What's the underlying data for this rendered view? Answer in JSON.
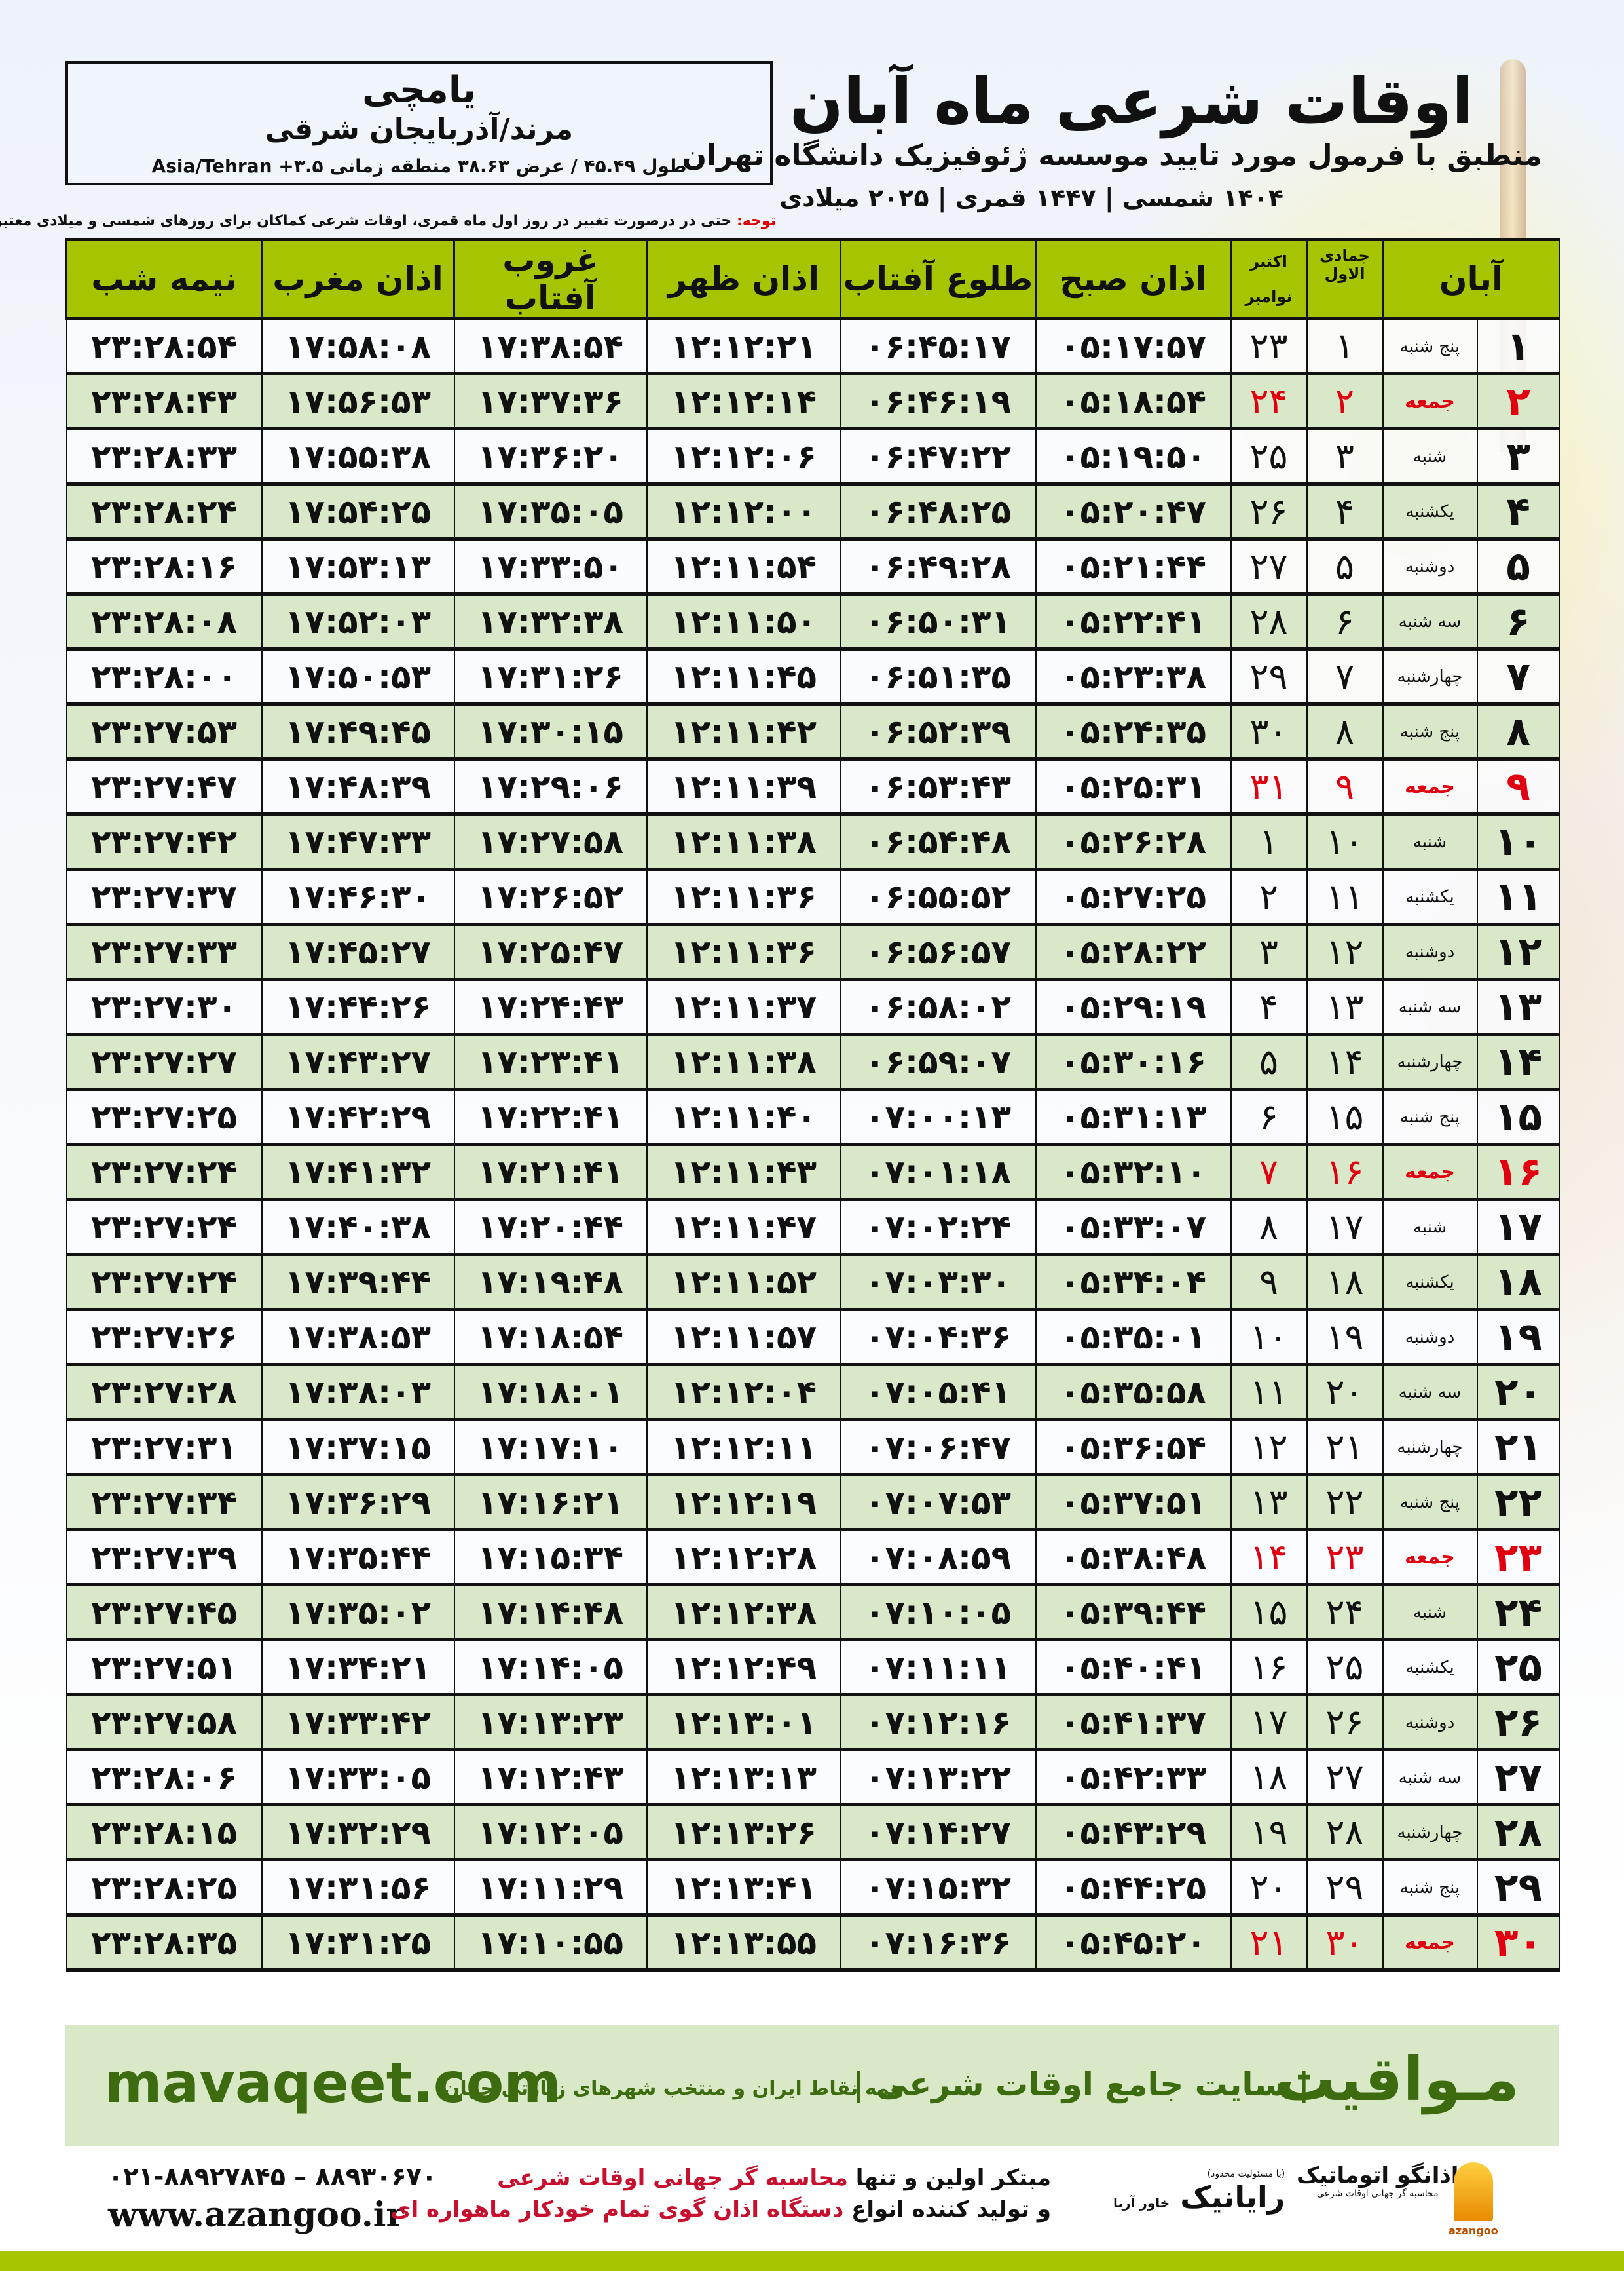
{
  "header": {
    "title": "اوقات شرعی ماه آبان",
    "subtitle": "منطبق با فرمول مورد تایید موسسه ژئوفیزیک دانشگاه تهران",
    "dates": "۱۴۰۴ شمسی | ۱۴۴۷ قمری | ۲۰۲۵ میلادی"
  },
  "location": {
    "city": "یامچی",
    "region": "مرند/آذربایجان شرقی",
    "coords": "طول ۴۵.۴۹ / عرض ۳۸.۶۳ منطقه زمانی Asia/Tehran +۳.۵"
  },
  "note": {
    "label": "توجه:",
    "text": " حتی در درصورت تغییر در روز اول ماه قمری، اوقات شرعی کماکان برای روزهای شمسی و میلادی معتبر است."
  },
  "table": {
    "headers": {
      "shamsi": "آبان",
      "hijri": "جمادی الاول",
      "gregorian_top": "اکتبر",
      "gregorian_bottom": "نوامبر",
      "fajr": "اذان صبح",
      "sunrise": "طلوع آفتاب",
      "dhuhr": "اذان ظهر",
      "sunset": "غروب آفتاب",
      "maghrib": "اذان مغرب",
      "midnight": "نیمه شب"
    },
    "holiday_color": "#e00010",
    "header_color": "#a6c400",
    "stripe_color": "#d9e8c8",
    "rows": [
      {
        "day": "۱",
        "weekday": "پنج شنبه",
        "hijri": "۱",
        "gregorian": "۲۳",
        "fajr": "۰۵:۱۷:۵۷",
        "sunrise": "۰۶:۴۵:۱۷",
        "dhuhr": "۱۲:۱۲:۲۱",
        "sunset": "۱۷:۳۸:۵۴",
        "maghrib": "۱۷:۵۸:۰۸",
        "midnight": "۲۳:۲۸:۵۴",
        "holiday": false
      },
      {
        "day": "۲",
        "weekday": "جمعه",
        "hijri": "۲",
        "gregorian": "۲۴",
        "fajr": "۰۵:۱۸:۵۴",
        "sunrise": "۰۶:۴۶:۱۹",
        "dhuhr": "۱۲:۱۲:۱۴",
        "sunset": "۱۷:۳۷:۳۶",
        "maghrib": "۱۷:۵۶:۵۳",
        "midnight": "۲۳:۲۸:۴۳",
        "holiday": true
      },
      {
        "day": "۳",
        "weekday": "شنبه",
        "hijri": "۳",
        "gregorian": "۲۵",
        "fajr": "۰۵:۱۹:۵۰",
        "sunrise": "۰۶:۴۷:۲۲",
        "dhuhr": "۱۲:۱۲:۰۶",
        "sunset": "۱۷:۳۶:۲۰",
        "maghrib": "۱۷:۵۵:۳۸",
        "midnight": "۲۳:۲۸:۳۳",
        "holiday": false
      },
      {
        "day": "۴",
        "weekday": "یکشنبه",
        "hijri": "۴",
        "gregorian": "۲۶",
        "fajr": "۰۵:۲۰:۴۷",
        "sunrise": "۰۶:۴۸:۲۵",
        "dhuhr": "۱۲:۱۲:۰۰",
        "sunset": "۱۷:۳۵:۰۵",
        "maghrib": "۱۷:۵۴:۲۵",
        "midnight": "۲۳:۲۸:۲۴",
        "holiday": false
      },
      {
        "day": "۵",
        "weekday": "دوشنبه",
        "hijri": "۵",
        "gregorian": "۲۷",
        "fajr": "۰۵:۲۱:۴۴",
        "sunrise": "۰۶:۴۹:۲۸",
        "dhuhr": "۱۲:۱۱:۵۴",
        "sunset": "۱۷:۳۳:۵۰",
        "maghrib": "۱۷:۵۳:۱۳",
        "midnight": "۲۳:۲۸:۱۶",
        "holiday": false
      },
      {
        "day": "۶",
        "weekday": "سه شنبه",
        "hijri": "۶",
        "gregorian": "۲۸",
        "fajr": "۰۵:۲۲:۴۱",
        "sunrise": "۰۶:۵۰:۳۱",
        "dhuhr": "۱۲:۱۱:۵۰",
        "sunset": "۱۷:۳۲:۳۸",
        "maghrib": "۱۷:۵۲:۰۳",
        "midnight": "۲۳:۲۸:۰۸",
        "holiday": false
      },
      {
        "day": "۷",
        "weekday": "چهارشنبه",
        "hijri": "۷",
        "gregorian": "۲۹",
        "fajr": "۰۵:۲۳:۳۸",
        "sunrise": "۰۶:۵۱:۳۵",
        "dhuhr": "۱۲:۱۱:۴۵",
        "sunset": "۱۷:۳۱:۲۶",
        "maghrib": "۱۷:۵۰:۵۳",
        "midnight": "۲۳:۲۸:۰۰",
        "holiday": false
      },
      {
        "day": "۸",
        "weekday": "پنج شنبه",
        "hijri": "۸",
        "gregorian": "۳۰",
        "fajr": "۰۵:۲۴:۳۵",
        "sunrise": "۰۶:۵۲:۳۹",
        "dhuhr": "۱۲:۱۱:۴۲",
        "sunset": "۱۷:۳۰:۱۵",
        "maghrib": "۱۷:۴۹:۴۵",
        "midnight": "۲۳:۲۷:۵۳",
        "holiday": false
      },
      {
        "day": "۹",
        "weekday": "جمعه",
        "hijri": "۹",
        "gregorian": "۳۱",
        "fajr": "۰۵:۲۵:۳۱",
        "sunrise": "۰۶:۵۳:۴۳",
        "dhuhr": "۱۲:۱۱:۳۹",
        "sunset": "۱۷:۲۹:۰۶",
        "maghrib": "۱۷:۴۸:۳۹",
        "midnight": "۲۳:۲۷:۴۷",
        "holiday": true
      },
      {
        "day": "۱۰",
        "weekday": "شنبه",
        "hijri": "۱۰",
        "gregorian": "۱",
        "fajr": "۰۵:۲۶:۲۸",
        "sunrise": "۰۶:۵۴:۴۸",
        "dhuhr": "۱۲:۱۱:۳۸",
        "sunset": "۱۷:۲۷:۵۸",
        "maghrib": "۱۷:۴۷:۳۳",
        "midnight": "۲۳:۲۷:۴۲",
        "holiday": false
      },
      {
        "day": "۱۱",
        "weekday": "یکشنبه",
        "hijri": "۱۱",
        "gregorian": "۲",
        "fajr": "۰۵:۲۷:۲۵",
        "sunrise": "۰۶:۵۵:۵۲",
        "dhuhr": "۱۲:۱۱:۳۶",
        "sunset": "۱۷:۲۶:۵۲",
        "maghrib": "۱۷:۴۶:۳۰",
        "midnight": "۲۳:۲۷:۳۷",
        "holiday": false
      },
      {
        "day": "۱۲",
        "weekday": "دوشنبه",
        "hijri": "۱۲",
        "gregorian": "۳",
        "fajr": "۰۵:۲۸:۲۲",
        "sunrise": "۰۶:۵۶:۵۷",
        "dhuhr": "۱۲:۱۱:۳۶",
        "sunset": "۱۷:۲۵:۴۷",
        "maghrib": "۱۷:۴۵:۲۷",
        "midnight": "۲۳:۲۷:۳۳",
        "holiday": false
      },
      {
        "day": "۱۳",
        "weekday": "سه شنبه",
        "hijri": "۱۳",
        "gregorian": "۴",
        "fajr": "۰۵:۲۹:۱۹",
        "sunrise": "۰۶:۵۸:۰۲",
        "dhuhr": "۱۲:۱۱:۳۷",
        "sunset": "۱۷:۲۴:۴۳",
        "maghrib": "۱۷:۴۴:۲۶",
        "midnight": "۲۳:۲۷:۳۰",
        "holiday": false
      },
      {
        "day": "۱۴",
        "weekday": "چهارشنبه",
        "hijri": "۱۴",
        "gregorian": "۵",
        "fajr": "۰۵:۳۰:۱۶",
        "sunrise": "۰۶:۵۹:۰۷",
        "dhuhr": "۱۲:۱۱:۳۸",
        "sunset": "۱۷:۲۳:۴۱",
        "maghrib": "۱۷:۴۳:۲۷",
        "midnight": "۲۳:۲۷:۲۷",
        "holiday": false
      },
      {
        "day": "۱۵",
        "weekday": "پنج شنبه",
        "hijri": "۱۵",
        "gregorian": "۶",
        "fajr": "۰۵:۳۱:۱۳",
        "sunrise": "۰۷:۰۰:۱۳",
        "dhuhr": "۱۲:۱۱:۴۰",
        "sunset": "۱۷:۲۲:۴۱",
        "maghrib": "۱۷:۴۲:۲۹",
        "midnight": "۲۳:۲۷:۲۵",
        "holiday": false
      },
      {
        "day": "۱۶",
        "weekday": "جمعه",
        "hijri": "۱۶",
        "gregorian": "۷",
        "fajr": "۰۵:۳۲:۱۰",
        "sunrise": "۰۷:۰۱:۱۸",
        "dhuhr": "۱۲:۱۱:۴۳",
        "sunset": "۱۷:۲۱:۴۱",
        "maghrib": "۱۷:۴۱:۳۲",
        "midnight": "۲۳:۲۷:۲۴",
        "holiday": true
      },
      {
        "day": "۱۷",
        "weekday": "شنبه",
        "hijri": "۱۷",
        "gregorian": "۸",
        "fajr": "۰۵:۳۳:۰۷",
        "sunrise": "۰۷:۰۲:۲۴",
        "dhuhr": "۱۲:۱۱:۴۷",
        "sunset": "۱۷:۲۰:۴۴",
        "maghrib": "۱۷:۴۰:۳۸",
        "midnight": "۲۳:۲۷:۲۴",
        "holiday": false
      },
      {
        "day": "۱۸",
        "weekday": "یکشنبه",
        "hijri": "۱۸",
        "gregorian": "۹",
        "fajr": "۰۵:۳۴:۰۴",
        "sunrise": "۰۷:۰۳:۳۰",
        "dhuhr": "۱۲:۱۱:۵۲",
        "sunset": "۱۷:۱۹:۴۸",
        "maghrib": "۱۷:۳۹:۴۴",
        "midnight": "۲۳:۲۷:۲۴",
        "holiday": false
      },
      {
        "day": "۱۹",
        "weekday": "دوشنبه",
        "hijri": "۱۹",
        "gregorian": "۱۰",
        "fajr": "۰۵:۳۵:۰۱",
        "sunrise": "۰۷:۰۴:۳۶",
        "dhuhr": "۱۲:۱۱:۵۷",
        "sunset": "۱۷:۱۸:۵۴",
        "maghrib": "۱۷:۳۸:۵۳",
        "midnight": "۲۳:۲۷:۲۶",
        "holiday": false
      },
      {
        "day": "۲۰",
        "weekday": "سه شنبه",
        "hijri": "۲۰",
        "gregorian": "۱۱",
        "fajr": "۰۵:۳۵:۵۸",
        "sunrise": "۰۷:۰۵:۴۱",
        "dhuhr": "۱۲:۱۲:۰۴",
        "sunset": "۱۷:۱۸:۰۱",
        "maghrib": "۱۷:۳۸:۰۳",
        "midnight": "۲۳:۲۷:۲۸",
        "holiday": false
      },
      {
        "day": "۲۱",
        "weekday": "چهارشنبه",
        "hijri": "۲۱",
        "gregorian": "۱۲",
        "fajr": "۰۵:۳۶:۵۴",
        "sunrise": "۰۷:۰۶:۴۷",
        "dhuhr": "۱۲:۱۲:۱۱",
        "sunset": "۱۷:۱۷:۱۰",
        "maghrib": "۱۷:۳۷:۱۵",
        "midnight": "۲۳:۲۷:۳۱",
        "holiday": false
      },
      {
        "day": "۲۲",
        "weekday": "پنج شنبه",
        "hijri": "۲۲",
        "gregorian": "۱۳",
        "fajr": "۰۵:۳۷:۵۱",
        "sunrise": "۰۷:۰۷:۵۳",
        "dhuhr": "۱۲:۱۲:۱۹",
        "sunset": "۱۷:۱۶:۲۱",
        "maghrib": "۱۷:۳۶:۲۹",
        "midnight": "۲۳:۲۷:۳۴",
        "holiday": false
      },
      {
        "day": "۲۳",
        "weekday": "جمعه",
        "hijri": "۲۳",
        "gregorian": "۱۴",
        "fajr": "۰۵:۳۸:۴۸",
        "sunrise": "۰۷:۰۸:۵۹",
        "dhuhr": "۱۲:۱۲:۲۸",
        "sunset": "۱۷:۱۵:۳۴",
        "maghrib": "۱۷:۳۵:۴۴",
        "midnight": "۲۳:۲۷:۳۹",
        "holiday": true
      },
      {
        "day": "۲۴",
        "weekday": "شنبه",
        "hijri": "۲۴",
        "gregorian": "۱۵",
        "fajr": "۰۵:۳۹:۴۴",
        "sunrise": "۰۷:۱۰:۰۵",
        "dhuhr": "۱۲:۱۲:۳۸",
        "sunset": "۱۷:۱۴:۴۸",
        "maghrib": "۱۷:۳۵:۰۲",
        "midnight": "۲۳:۲۷:۴۵",
        "holiday": false
      },
      {
        "day": "۲۵",
        "weekday": "یکشنبه",
        "hijri": "۲۵",
        "gregorian": "۱۶",
        "fajr": "۰۵:۴۰:۴۱",
        "sunrise": "۰۷:۱۱:۱۱",
        "dhuhr": "۱۲:۱۲:۴۹",
        "sunset": "۱۷:۱۴:۰۵",
        "maghrib": "۱۷:۳۴:۲۱",
        "midnight": "۲۳:۲۷:۵۱",
        "holiday": false
      },
      {
        "day": "۲۶",
        "weekday": "دوشنبه",
        "hijri": "۲۶",
        "gregorian": "۱۷",
        "fajr": "۰۵:۴۱:۳۷",
        "sunrise": "۰۷:۱۲:۱۶",
        "dhuhr": "۱۲:۱۳:۰۱",
        "sunset": "۱۷:۱۳:۲۳",
        "maghrib": "۱۷:۳۳:۴۲",
        "midnight": "۲۳:۲۷:۵۸",
        "holiday": false
      },
      {
        "day": "۲۷",
        "weekday": "سه شنبه",
        "hijri": "۲۷",
        "gregorian": "۱۸",
        "fajr": "۰۵:۴۲:۳۳",
        "sunrise": "۰۷:۱۳:۲۲",
        "dhuhr": "۱۲:۱۳:۱۳",
        "sunset": "۱۷:۱۲:۴۳",
        "maghrib": "۱۷:۳۳:۰۵",
        "midnight": "۲۳:۲۸:۰۶",
        "holiday": false
      },
      {
        "day": "۲۸",
        "weekday": "چهارشنبه",
        "hijri": "۲۸",
        "gregorian": "۱۹",
        "fajr": "۰۵:۴۳:۲۹",
        "sunrise": "۰۷:۱۴:۲۷",
        "dhuhr": "۱۲:۱۳:۲۶",
        "sunset": "۱۷:۱۲:۰۵",
        "maghrib": "۱۷:۳۲:۲۹",
        "midnight": "۲۳:۲۸:۱۵",
        "holiday": false
      },
      {
        "day": "۲۹",
        "weekday": "پنج شنبه",
        "hijri": "۲۹",
        "gregorian": "۲۰",
        "fajr": "۰۵:۴۴:۲۵",
        "sunrise": "۰۷:۱۵:۳۲",
        "dhuhr": "۱۲:۱۳:۴۱",
        "sunset": "۱۷:۱۱:۲۹",
        "maghrib": "۱۷:۳۱:۵۶",
        "midnight": "۲۳:۲۸:۲۵",
        "holiday": false
      },
      {
        "day": "۳۰",
        "weekday": "جمعه",
        "hijri": "۳۰",
        "gregorian": "۲۱",
        "fajr": "۰۵:۴۵:۲۰",
        "sunrise": "۰۷:۱۶:۳۶",
        "dhuhr": "۱۲:۱۳:۵۵",
        "sunset": "۱۷:۱۰:۵۵",
        "maghrib": "۱۷:۳۱:۲۵",
        "midnight": "۲۳:۲۸:۳۵",
        "holiday": true
      }
    ]
  },
  "banner": {
    "site_name": "مـواقیت",
    "tagline": "| سایت جامع اوقات شرعی |",
    "sub_tagline": "همه نقاط ایران و منتخب شهرهای زیارتی جهان",
    "url": "mavaqeet.com",
    "color": "#3d6b10"
  },
  "footer": {
    "phones": "۰۲۱-۸۸۹۲۷۸۴۵ – ۸۸۹۳۰۶۷۰",
    "website": "www.azangoo.ir",
    "promo_line1_a": "مبتکر اولین و تنها ",
    "promo_line1_b": "محاسبه گر جهانی اوقات شرعی",
    "promo_line2_a": "و تولید کننده انواع ",
    "promo_line2_b": "دستگاه اذان گوی تمام خودکار ماهواره ای",
    "rayanik_note": "(با مسئولیت محدود)",
    "rayanik": "رایانیک",
    "rayanik_sub": "خاور آریا",
    "azangoo_name": "اذانگو اتوماتیک",
    "azangoo_sub": "محاسبه گر جهانی اوقات شرعی",
    "azangoo_en": "azangoo"
  }
}
